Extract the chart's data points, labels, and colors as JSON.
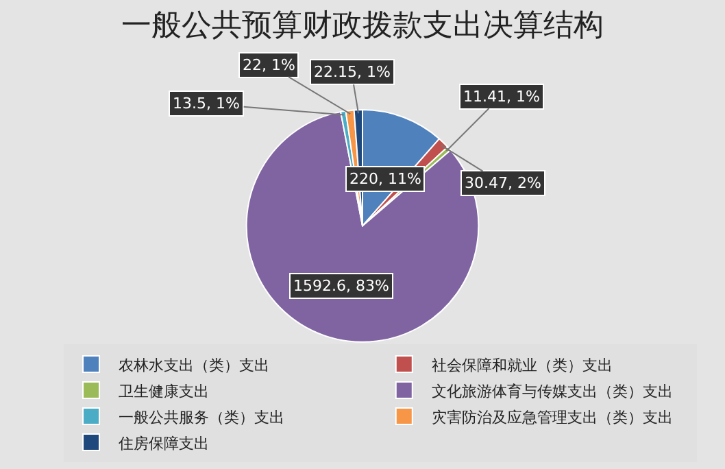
{
  "chart_data": {
    "type": "pie",
    "title": "一般公共预算财政拨款支出决算结构",
    "categories": [
      "农林水支出（类）支出",
      "社会保障和就业（类）支出",
      "卫生健康支出",
      "文化旅游体育与传媒支出（类）支出",
      "一般公共服务（类）支出",
      "灾害防治及应急管理支出（类）支出",
      "住房保障支出"
    ],
    "values": [
      220,
      30.47,
      11.41,
      1592.6,
      13.5,
      22,
      22.15
    ],
    "value_labels": [
      "220, 11%",
      "30.47, 2%",
      "11.41, 1%",
      "1592.6, 83%",
      "13.5, 1%",
      "22, 1%",
      "22.15, 1%"
    ],
    "colors": [
      "#4f81bd",
      "#c0504d",
      "#9bbb59",
      "#8064a2",
      "#4bacc6",
      "#f79646",
      "#1f497d"
    ],
    "legend": "bottom"
  }
}
